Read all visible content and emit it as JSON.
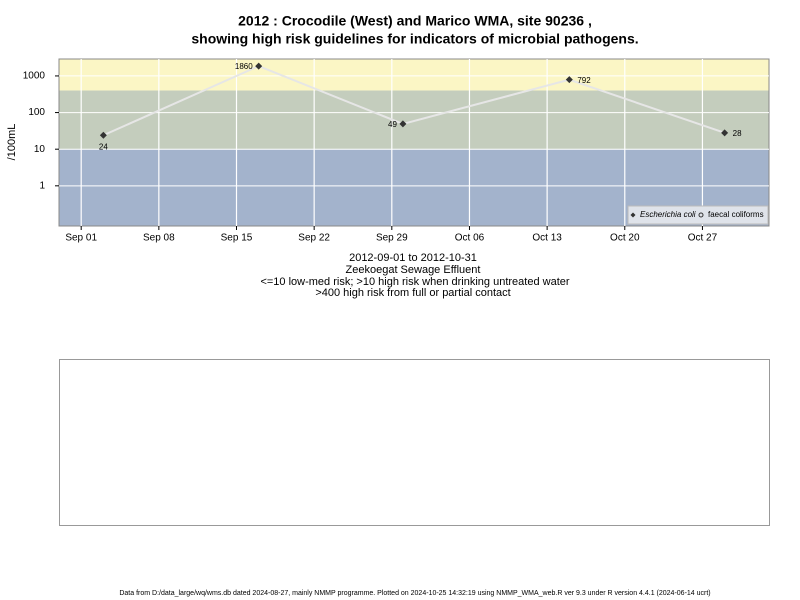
{
  "chart_data": {
    "type": "line",
    "title": "2012 : Crocodile (West) and Marico WMA, site 90236 ,",
    "subtitle": "showing high risk guidelines for indicators of microbial pathogens.",
    "y_label": "/100mL",
    "notes": [
      "2012-09-01 to 2012-10-31",
      "Zeekoegat Sewage Effluent",
      "<=10 low-med risk; >10 high risk when drinking untreated water",
      ">400 high risk from full or partial contact"
    ],
    "footer": "Data from D:/data_large/wq/wms.db dated 2024-08-27, mainly NMMP programme. Plotted on 2024-10-25 14:32:19 using NMMP_WMA_web.R ver 9.3 under R version 4.4.1 (2024-06-14 ucrt)",
    "x": [
      "Sep 03",
      "Sep 17",
      "Sep 30",
      "Oct 15",
      "Oct 29"
    ],
    "series": [
      {
        "name": "Escherichia coli",
        "color": "#333333",
        "line_color": "#e6e6e6",
        "values": [
          24,
          1860,
          49,
          792,
          28
        ]
      },
      {
        "name": "faecal coliforms",
        "color": "#333333",
        "values": [
          null,
          null,
          null,
          null,
          null
        ]
      }
    ],
    "xlim": [
      "Aug 30",
      "Nov 02"
    ],
    "xticks": [
      "Sep 01",
      "Sep 08",
      "Sep 15",
      "Sep 22",
      "Sep 29",
      "Oct 06",
      "Oct 13",
      "Oct 20",
      "Oct 27"
    ],
    "ylim": [
      0.08,
      2900
    ],
    "yticks": [
      1,
      10,
      100,
      1000
    ],
    "log_y": true,
    "grid": true,
    "thresholds": [
      10,
      400
    ],
    "band_colors": [
      "#a3b3cc",
      "#c4cdbd",
      "#fbf6c5"
    ],
    "legend": "bottom-right"
  }
}
